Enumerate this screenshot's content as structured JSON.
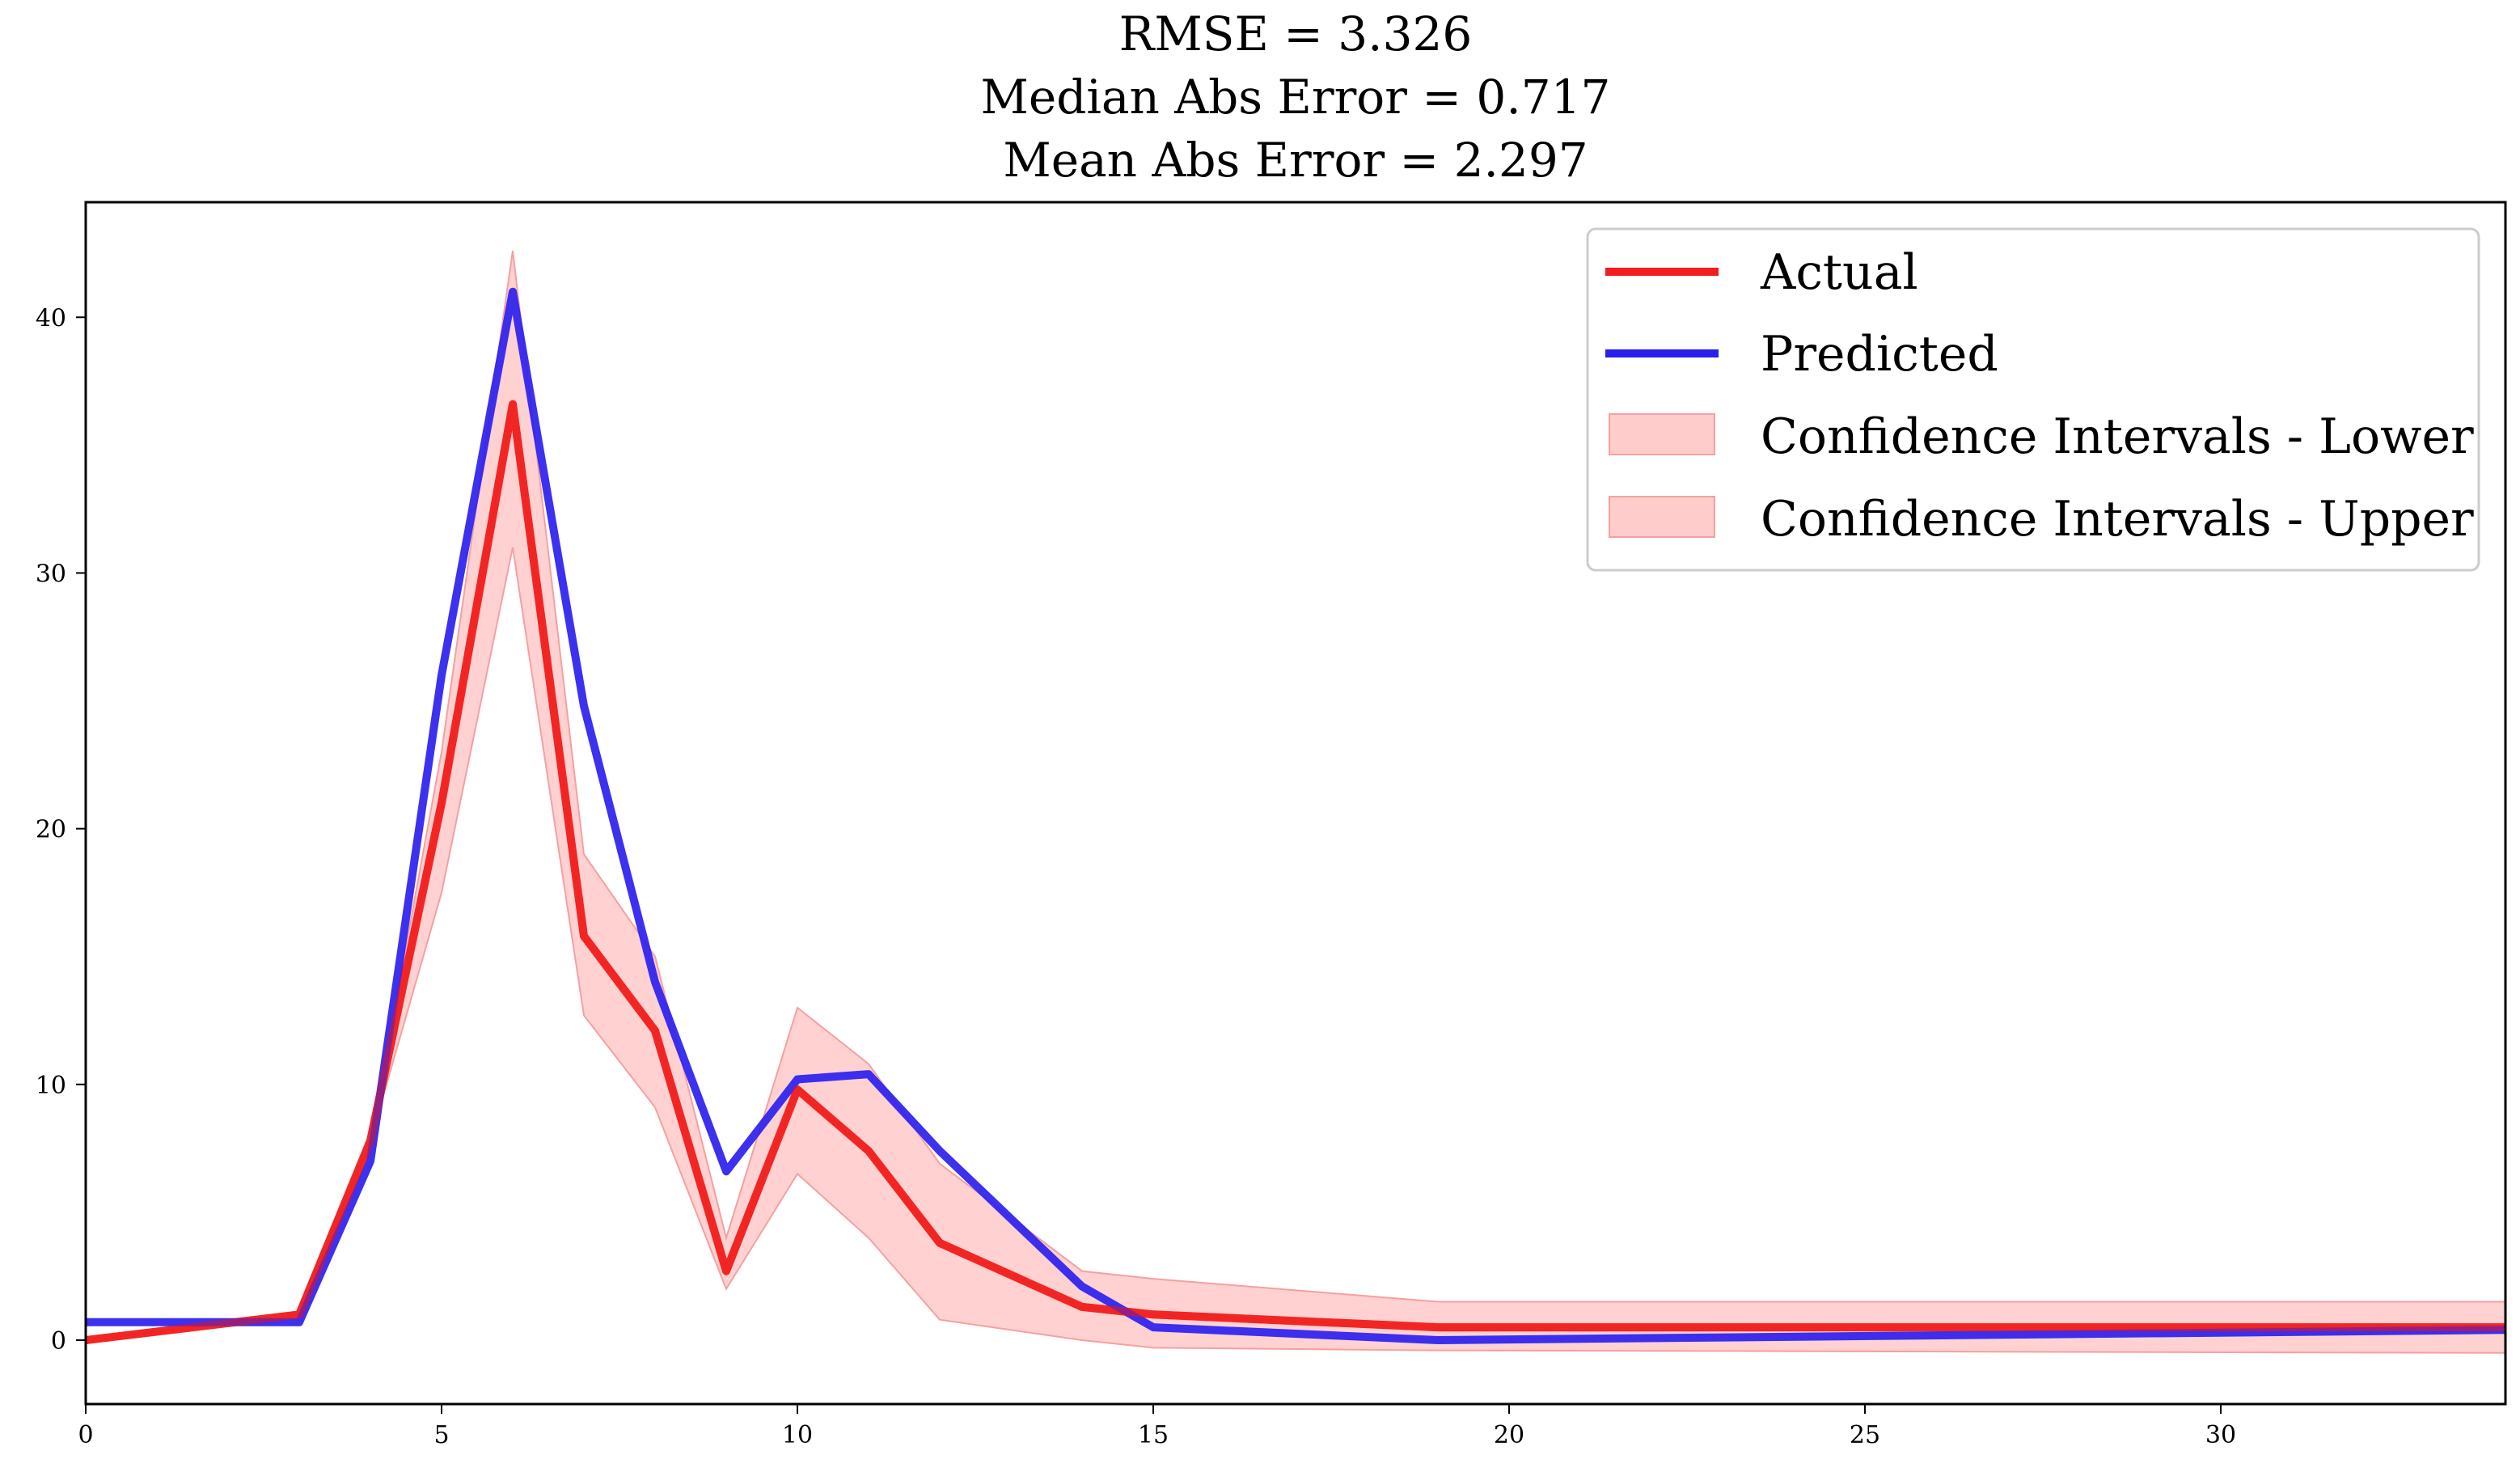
{
  "colors": {
    "actual": "#f21d1d",
    "predicted": "#2b1fee",
    "ci_fill": "#ffcccc",
    "ci_edge": "#f5a0a0"
  },
  "chart_data": {
    "type": "line",
    "title": [
      "RMSE = 3.326",
      "Median Abs Error = 0.717",
      "Mean Abs Error = 2.297"
    ],
    "xlabel": "",
    "ylabel": "",
    "xlim": [
      0,
      34
    ],
    "ylim": [
      -2.5,
      44.5
    ],
    "x_ticks": [
      0,
      5,
      10,
      15,
      20,
      25,
      30
    ],
    "y_ticks": [
      0,
      10,
      20,
      30,
      40
    ],
    "grid": false,
    "legend_position": "top-right",
    "legend": [
      "Actual",
      "Predicted",
      "Confidence Intervals - Lower",
      "Confidence Intervals - Upper"
    ],
    "series": [
      {
        "name": "Actual",
        "x": [
          0,
          3,
          4,
          5,
          6,
          7,
          8,
          9,
          10,
          11,
          12,
          14,
          15,
          19,
          34
        ],
        "y": [
          0.0,
          1.0,
          7.8,
          21.0,
          36.6,
          15.8,
          12.1,
          2.7,
          9.8,
          7.4,
          3.8,
          1.3,
          1.0,
          0.5,
          0.5
        ]
      },
      {
        "name": "Predicted",
        "x": [
          0,
          3,
          4,
          5,
          6,
          7,
          8,
          9,
          10,
          11,
          12,
          14,
          15,
          19,
          34
        ],
        "y": [
          0.7,
          0.7,
          7.0,
          26.0,
          41.0,
          24.8,
          14.0,
          6.6,
          10.2,
          10.4,
          7.4,
          2.1,
          0.5,
          0.0,
          0.4
        ]
      }
    ],
    "confidence_band": {
      "x": [
        0,
        3,
        4,
        5,
        6,
        7,
        8,
        9,
        10,
        11,
        12,
        14,
        15,
        19,
        34
      ],
      "lower": [
        0.0,
        1.0,
        7.8,
        17.5,
        31.0,
        12.7,
        9.1,
        2.0,
        6.5,
        4.0,
        0.8,
        0.0,
        -0.3,
        -0.4,
        -0.5
      ],
      "upper": [
        0.0,
        1.0,
        7.8,
        23.0,
        42.6,
        19.0,
        15.0,
        4.0,
        13.0,
        10.8,
        6.9,
        2.7,
        2.4,
        1.5,
        1.5
      ]
    }
  }
}
